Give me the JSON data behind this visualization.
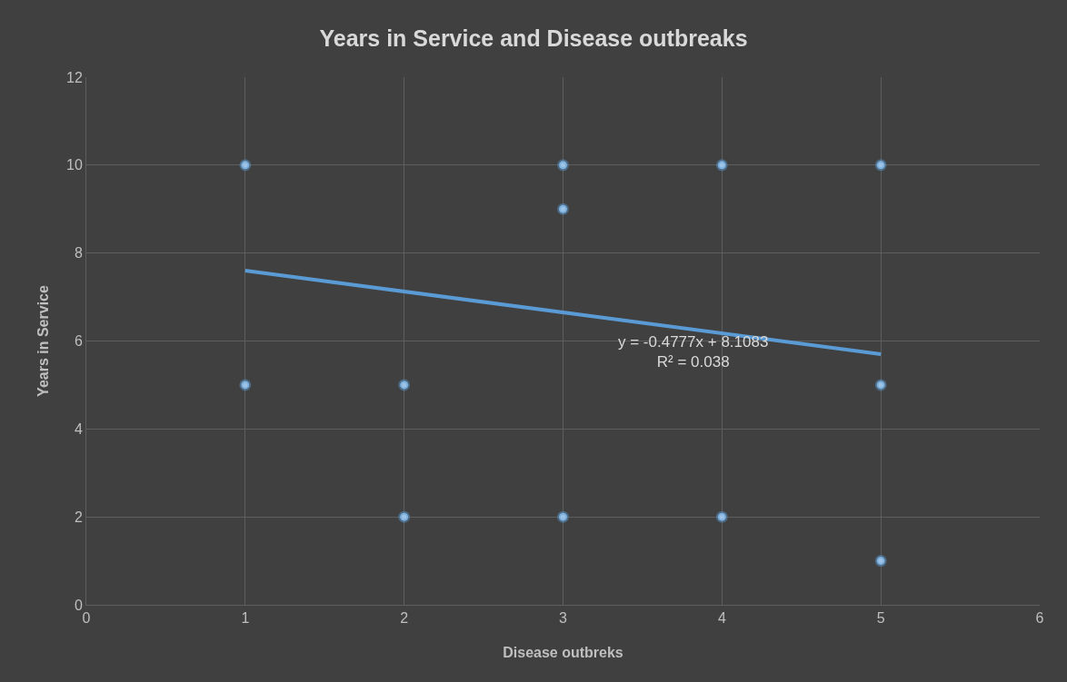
{
  "chart_data": {
    "type": "scatter",
    "title": "Years in Service and Disease outbreaks",
    "xlabel": "Disease outbreks",
    "ylabel": "Years in Service",
    "xlim": [
      0,
      6
    ],
    "xticks": [
      0,
      1,
      2,
      3,
      4,
      5,
      6
    ],
    "ylim": [
      0,
      12
    ],
    "yticks": [
      0,
      2,
      4,
      6,
      8,
      10,
      12
    ],
    "grid": true,
    "series": [
      {
        "marker": "circle",
        "color": "#9dc3e6",
        "x": [
          1,
          1,
          2,
          2,
          3,
          3,
          3,
          4,
          4,
          5,
          5,
          5
        ],
        "values": [
          10,
          5,
          5,
          2,
          10,
          9,
          2,
          10,
          2,
          10,
          5,
          1
        ]
      },
      {
        "type": "line",
        "marker": "none",
        "color": "#5b9bd5",
        "x": [
          1,
          5
        ],
        "values": [
          7.6,
          5.7
        ],
        "line_style": "solid"
      }
    ],
    "annotations": [
      "y = -0.4777x + 8.1083\nR² = 0.038"
    ]
  }
}
